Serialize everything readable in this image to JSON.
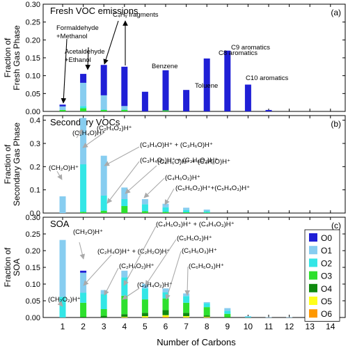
{
  "figure": {
    "xlabel": "Number of Carbons"
  },
  "chart_data": [
    {
      "type": "bar",
      "stacked": true,
      "panel_label": "(a)",
      "title": "Fresh VOC emissions",
      "ylabel_lines": [
        "Fraction of",
        "Fresh Gas Phase"
      ],
      "ylim": [
        0,
        0.3
      ],
      "yticks": [
        0.0,
        0.05,
        0.1,
        0.15,
        0.2,
        0.25,
        0.3
      ],
      "x": [
        1,
        2,
        3,
        4,
        5,
        6,
        7,
        8,
        9,
        10,
        11,
        12,
        13,
        14
      ],
      "series": [
        {
          "name": "O3",
          "values": [
            0.004,
            0.009,
            0.004,
            0.004,
            0,
            0.003,
            0,
            0,
            0,
            0,
            0,
            0,
            0,
            0
          ]
        },
        {
          "name": "O2",
          "values": [
            0,
            0.006,
            0.001,
            0.001,
            0,
            0,
            0,
            0,
            0,
            0,
            0,
            0,
            0,
            0
          ]
        },
        {
          "name": "O1",
          "values": [
            0.01,
            0.065,
            0.04,
            0.01,
            0,
            0,
            0,
            0,
            0,
            0,
            0,
            0,
            0,
            0
          ]
        },
        {
          "name": "O0",
          "values": [
            0.005,
            0.025,
            0.085,
            0.11,
            0.055,
            0.112,
            0.06,
            0.148,
            0.17,
            0.075,
            0.004,
            0,
            0,
            0
          ]
        }
      ],
      "annotations": [
        {
          "lines": [
            "Formaldehyde",
            "+Methanol"
          ]
        },
        {
          "lines": [
            "Acetaldehyde",
            "+Ethanol"
          ]
        },
        {
          "lines": [
            "C₄Hᵧ fragments"
          ]
        },
        {
          "lines": [
            "Benzene"
          ]
        },
        {
          "lines": [
            "Toluene"
          ]
        },
        {
          "lines": [
            "C8 aromatics"
          ]
        },
        {
          "lines": [
            "C9 aromatics"
          ]
        },
        {
          "lines": [
            "C10 aromatics"
          ]
        }
      ]
    },
    {
      "type": "bar",
      "stacked": true,
      "panel_label": "(b)",
      "title": "Secondary VOCs",
      "ylabel_lines": [
        "Fraction of",
        "Secondary Gas Phase"
      ],
      "ylim": [
        0,
        0.42
      ],
      "yticks": [
        0.0,
        0.1,
        0.2,
        0.3,
        0.4
      ],
      "x": [
        1,
        2,
        3,
        4,
        5,
        6,
        7,
        8,
        9,
        10,
        11,
        12,
        13,
        14
      ],
      "series": [
        {
          "name": "O3",
          "values": [
            0,
            0.005,
            0.01,
            0.03,
            0.008,
            0.005,
            0.003,
            0.002,
            0,
            0,
            0,
            0,
            0,
            0
          ]
        },
        {
          "name": "O2",
          "values": [
            0,
            0.205,
            0.065,
            0.03,
            0.03,
            0.02,
            0.01,
            0.006,
            0,
            0,
            0,
            0,
            0,
            0
          ]
        },
        {
          "name": "O1",
          "values": [
            0.072,
            0.2,
            0.172,
            0.05,
            0.022,
            0.015,
            0.01,
            0.007,
            0,
            0,
            0,
            0,
            0,
            0
          ]
        },
        {
          "name": "O0",
          "values": [
            0,
            0,
            0,
            0,
            0,
            0,
            0,
            0,
            0,
            0,
            0,
            0,
            0,
            0
          ]
        }
      ],
      "annotations": [
        {
          "lines": [
            "(C₂H₄O)H⁺"
          ]
        },
        {
          "lines": [
            "(C₂H₄O₂)H⁺"
          ]
        },
        {
          "lines": [
            "(C₃H₄O)H⁺ + (C₃H₆O)H⁺"
          ]
        },
        {
          "lines": [
            "(C₃H₄O₂)H⁺ + (C₃H₆O₂)H⁺"
          ]
        },
        {
          "lines": [
            "(CH₂O)H⁺"
          ]
        },
        {
          "lines": [
            "(C₄H₆O)H⁺ + (C₄H₈O)H⁺"
          ]
        },
        {
          "lines": [
            "(C₄H₆O₂)H⁺"
          ]
        },
        {
          "lines": [
            "(C₅H₆O₂)H⁺+(C₅H₄O₃)H⁺"
          ]
        }
      ]
    },
    {
      "type": "bar",
      "stacked": true,
      "panel_label": "(c)",
      "title": "SOA",
      "ylabel_lines": [
        "Fraction of",
        "SOA"
      ],
      "ylim": [
        0,
        0.3
      ],
      "yticks": [
        0.0,
        0.05,
        0.1,
        0.15,
        0.2,
        0.25,
        0.3
      ],
      "x": [
        1,
        2,
        3,
        4,
        5,
        6,
        7,
        8,
        9,
        10,
        11,
        12,
        13,
        14
      ],
      "series": [
        {
          "name": "O6",
          "values": [
            0,
            0,
            0,
            0,
            0,
            0.002,
            0,
            0,
            0,
            0,
            0,
            0,
            0,
            0
          ]
        },
        {
          "name": "O5",
          "values": [
            0,
            0,
            0,
            0.002,
            0.004,
            0.005,
            0.004,
            0.002,
            0,
            0,
            0,
            0,
            0,
            0
          ]
        },
        {
          "name": "O4",
          "values": [
            0,
            0.002,
            0.005,
            0.008,
            0.01,
            0.015,
            0.01,
            0.004,
            0.001,
            0,
            0,
            0,
            0,
            0
          ]
        },
        {
          "name": "O3",
          "values": [
            0,
            0.042,
            0.02,
            0.055,
            0.04,
            0.035,
            0.03,
            0.025,
            0.01,
            0,
            0,
            0,
            0,
            0
          ]
        },
        {
          "name": "O2",
          "values": [
            0.062,
            0.03,
            0.045,
            0.055,
            0.033,
            0.018,
            0.02,
            0.012,
            0.009,
            0.002,
            0,
            0,
            0,
            0
          ]
        },
        {
          "name": "O1",
          "values": [
            0.17,
            0.06,
            0.012,
            0.02,
            0.014,
            0.012,
            0.008,
            0.003,
            0.008,
            0.002,
            0.001,
            0.001,
            0.001,
            0
          ]
        },
        {
          "name": "O0",
          "values": [
            0,
            0.006,
            0,
            0,
            0,
            0,
            0,
            0,
            0,
            0,
            0,
            0,
            0,
            0
          ]
        }
      ],
      "legend": {
        "placement": "right",
        "entries": [
          "O0",
          "O1",
          "O2",
          "O3",
          "O4",
          "O5",
          "O6"
        ]
      },
      "annotations": [
        {
          "lines": [
            "(CH₂O)H⁺"
          ]
        },
        {
          "lines": [
            "(C₂H₄O)H⁺ + (C₂H₂O)H⁺"
          ]
        },
        {
          "lines": [
            "(C₂H₄O₂)H⁺"
          ]
        },
        {
          "lines": [
            "(C₃H₄O₂)H⁺"
          ]
        },
        {
          "lines": [
            "(CH₂O₂)H⁺"
          ]
        },
        {
          "lines": [
            "(C₄H₆O₃)H⁺ + (C₄H₄O₃)H⁺"
          ]
        },
        {
          "lines": [
            "(C₅H₆O₂)H⁺"
          ]
        },
        {
          "lines": [
            "(C₅H₆O₃)H⁺"
          ]
        },
        {
          "lines": [
            "(C₆H₆O₃)H⁺"
          ]
        }
      ]
    }
  ],
  "colors": {
    "O0": "#1f1fd6",
    "O1": "#87cdf0",
    "O2": "#33e6e6",
    "O3": "#2ee02e",
    "O4": "#0f8a0f",
    "O5": "#ffff1a",
    "O6": "#ff9900",
    "axis": "#000000",
    "arrow": "#aaaaaa"
  }
}
